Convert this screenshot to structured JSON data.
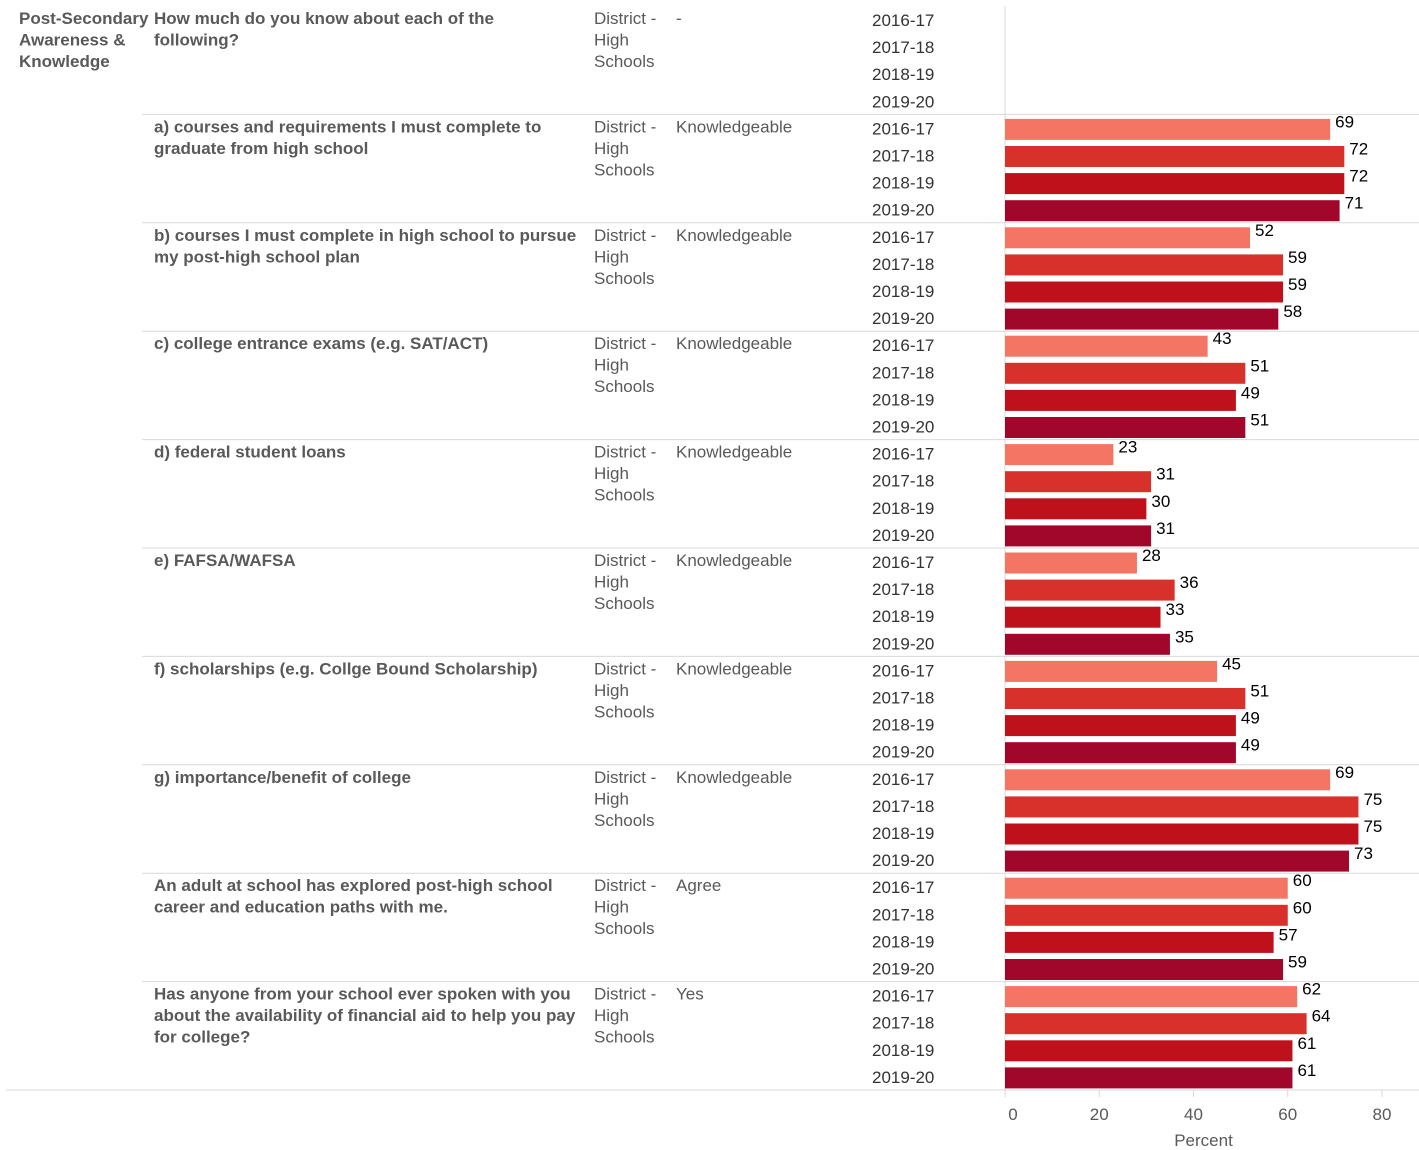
{
  "chart_data": {
    "type": "bar",
    "orientation": "horizontal",
    "category": "Post-Secondary Awareness & Knowledge",
    "xlabel": "Percent",
    "xlim": [
      0,
      80
    ],
    "xticks": [
      "0",
      "20",
      "40",
      "60",
      "80"
    ],
    "years": [
      "2016-17",
      "2017-18",
      "2018-19",
      "2019-20"
    ],
    "colors": [
      "#f47564",
      "#d8312b",
      "#bf111b",
      "#a0072a"
    ],
    "grid": false,
    "rows": [
      {
        "question": "How much do you know about each of the following?",
        "group": "District - High Schools",
        "response": "-",
        "values": [
          null,
          null,
          null,
          null
        ]
      },
      {
        "question": "a) courses and requirements I must complete to graduate from high school",
        "group": "District - High Schools",
        "response": "Knowledgeable",
        "values": [
          69,
          72,
          72,
          71
        ]
      },
      {
        "question": "b) courses I must complete in high school to pursue my post-high school plan",
        "group": "District - High Schools",
        "response": "Knowledgeable",
        "values": [
          52,
          59,
          59,
          58
        ]
      },
      {
        "question": "c) college entrance exams (e.g. SAT/ACT)",
        "group": "District - High Schools",
        "response": "Knowledgeable",
        "values": [
          43,
          51,
          49,
          51
        ]
      },
      {
        "question": "d) federal student loans",
        "group": "District - High Schools",
        "response": "Knowledgeable",
        "values": [
          23,
          31,
          30,
          31
        ]
      },
      {
        "question": "e) FAFSA/WAFSA",
        "group": "District - High Schools",
        "response": "Knowledgeable",
        "values": [
          28,
          36,
          33,
          35
        ]
      },
      {
        "question": "f) scholarships (e.g. Collge Bound Scholarship)",
        "group": "District - High Schools",
        "response": "Knowledgeable",
        "values": [
          45,
          51,
          49,
          49
        ]
      },
      {
        "question": "g) importance/benefit of college",
        "group": "District - High Schools",
        "response": "Knowledgeable",
        "values": [
          69,
          75,
          75,
          73
        ]
      },
      {
        "question": "An adult at school has explored post-high school career and education paths with me.",
        "group": "District - High Schools",
        "response": "Agree",
        "values": [
          60,
          60,
          57,
          59
        ]
      },
      {
        "question": "Has anyone from your school ever spoken with you about the availability of financial aid to help you pay for college?",
        "group": "District - High Schools",
        "response": "Yes",
        "values": [
          62,
          64,
          61,
          61
        ]
      }
    ]
  }
}
